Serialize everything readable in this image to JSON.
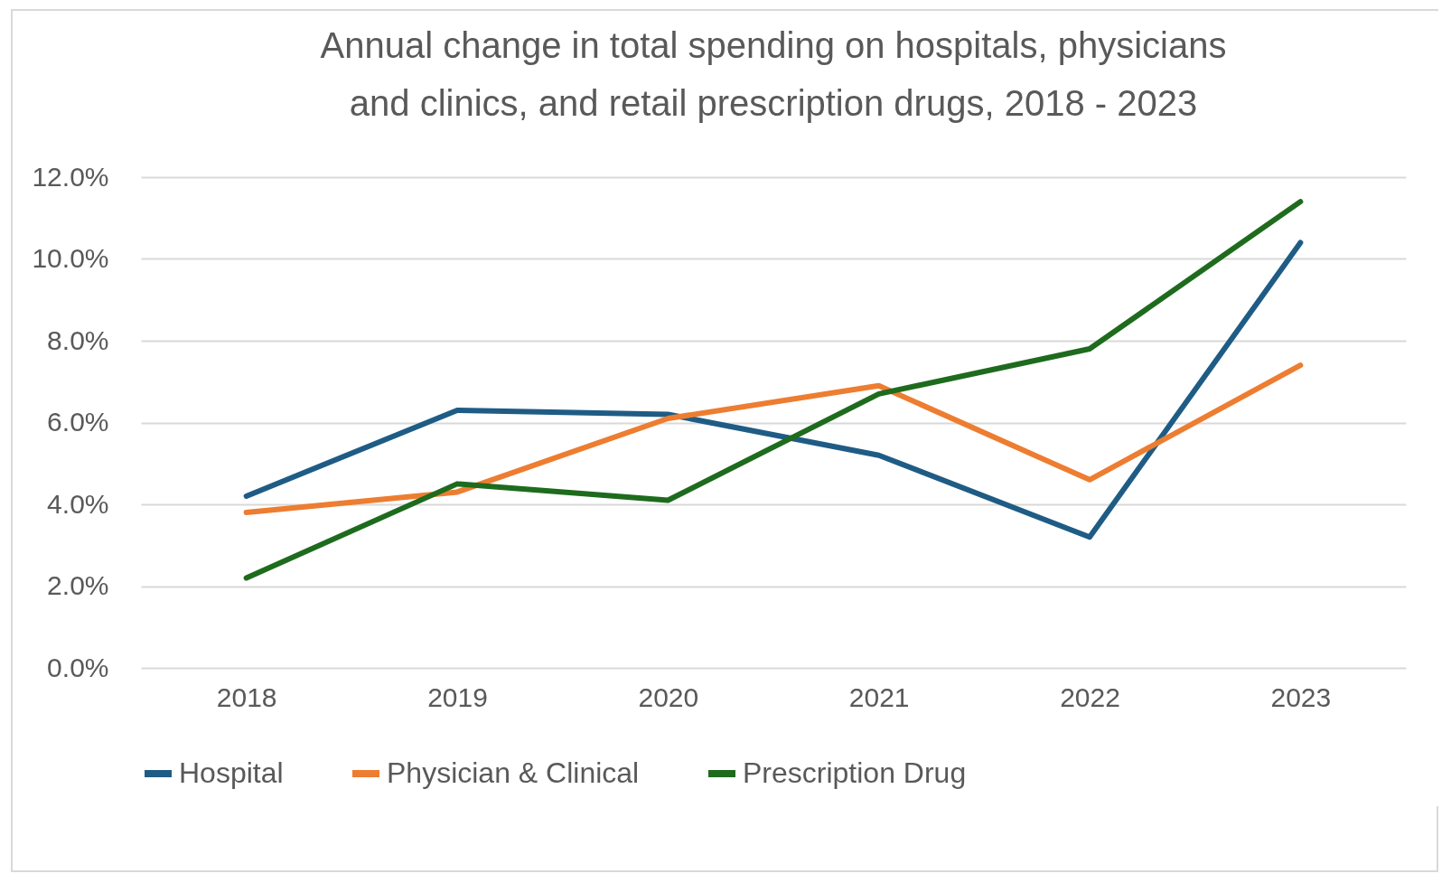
{
  "chart_data": {
    "type": "line",
    "title": "Annual change in total spending on hospitals, physicians and clinics, and retail prescription drugs, 2018 - 2023",
    "categories": [
      "2018",
      "2019",
      "2020",
      "2021",
      "2022",
      "2023"
    ],
    "series": [
      {
        "name": "Hospital",
        "color": "#1f5c85",
        "values": [
          4.2,
          6.3,
          6.2,
          5.2,
          3.2,
          10.4
        ]
      },
      {
        "name": "Physician & Clinical",
        "color": "#ed7d31",
        "values": [
          3.8,
          4.3,
          6.1,
          6.9,
          4.6,
          7.4
        ]
      },
      {
        "name": "Prescription Drug",
        "color": "#1e6b1e",
        "values": [
          2.2,
          4.5,
          4.1,
          6.7,
          7.8,
          11.4
        ]
      }
    ],
    "ylim": [
      0,
      12
    ],
    "yticks": [
      {
        "value": 0,
        "label": "0.0%"
      },
      {
        "value": 2,
        "label": "2.0%"
      },
      {
        "value": 4,
        "label": "4.0%"
      },
      {
        "value": 6,
        "label": "6.0%"
      },
      {
        "value": 8,
        "label": "8.0%"
      },
      {
        "value": 10,
        "label": "10.0%"
      },
      {
        "value": 12,
        "label": "12.0%"
      }
    ],
    "grid": "y",
    "legend": "bottom",
    "marker": "none",
    "line_style": "solid"
  }
}
